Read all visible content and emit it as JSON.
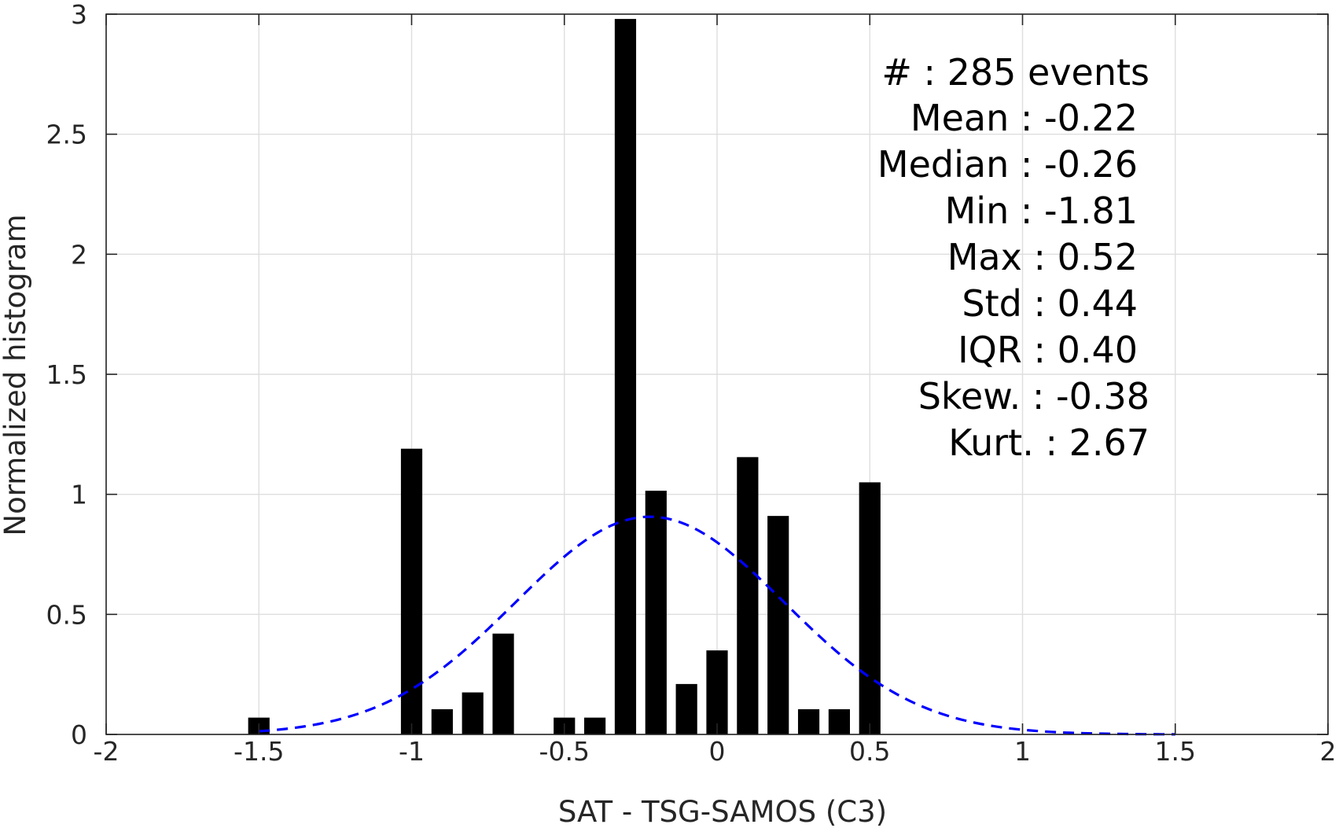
{
  "chart_data": {
    "type": "bar",
    "xlabel": "SAT - TSG-SAMOS (C3)",
    "ylabel": "Normalized histogram",
    "xlim": [
      -2,
      2
    ],
    "ylim": [
      0,
      3
    ],
    "grid": true,
    "x_ticks": [
      -2,
      -1.5,
      -1,
      -0.5,
      0,
      0.5,
      1,
      1.5,
      2
    ],
    "x_tick_labels": [
      "-2",
      "-1.5",
      "-1",
      "-0.5",
      "0",
      "0.5",
      "1",
      "1.5",
      "2"
    ],
    "y_ticks": [
      0,
      0.5,
      1,
      1.5,
      2,
      2.5,
      3
    ],
    "y_tick_labels": [
      "0",
      "0.5",
      "1",
      "1.5",
      "2",
      "2.5",
      "3"
    ],
    "bar_width": 0.07,
    "bars": [
      {
        "x": -1.5,
        "y": 0.07
      },
      {
        "x": -1.0,
        "y": 1.19
      },
      {
        "x": -0.9,
        "y": 0.105
      },
      {
        "x": -0.8,
        "y": 0.175
      },
      {
        "x": -0.7,
        "y": 0.42
      },
      {
        "x": -0.5,
        "y": 0.07
      },
      {
        "x": -0.4,
        "y": 0.07
      },
      {
        "x": -0.3,
        "y": 2.98
      },
      {
        "x": -0.2,
        "y": 1.015
      },
      {
        "x": -0.1,
        "y": 0.21
      },
      {
        "x": 0.0,
        "y": 0.35
      },
      {
        "x": 0.1,
        "y": 1.155
      },
      {
        "x": 0.2,
        "y": 0.91
      },
      {
        "x": 0.3,
        "y": 0.105
      },
      {
        "x": 0.4,
        "y": 0.105
      },
      {
        "x": 0.5,
        "y": 1.05
      }
    ],
    "bar_color": "#000000",
    "fit_curve": {
      "style": "dashed",
      "color": "#0000ff",
      "mean": -0.22,
      "std": 0.44,
      "x_range": [
        -1.5,
        1.5
      ]
    },
    "grid_color": "#dedede",
    "axis_color": "#262626"
  },
  "stats": [
    "#  : 285 events",
    "Mean : -0.22",
    "Median : -0.26",
    "Min : -1.81",
    "Max : 0.52",
    "Std : 0.44",
    "IQR : 0.40",
    "Skew. : -0.38",
    "Kurt. : 2.67"
  ]
}
